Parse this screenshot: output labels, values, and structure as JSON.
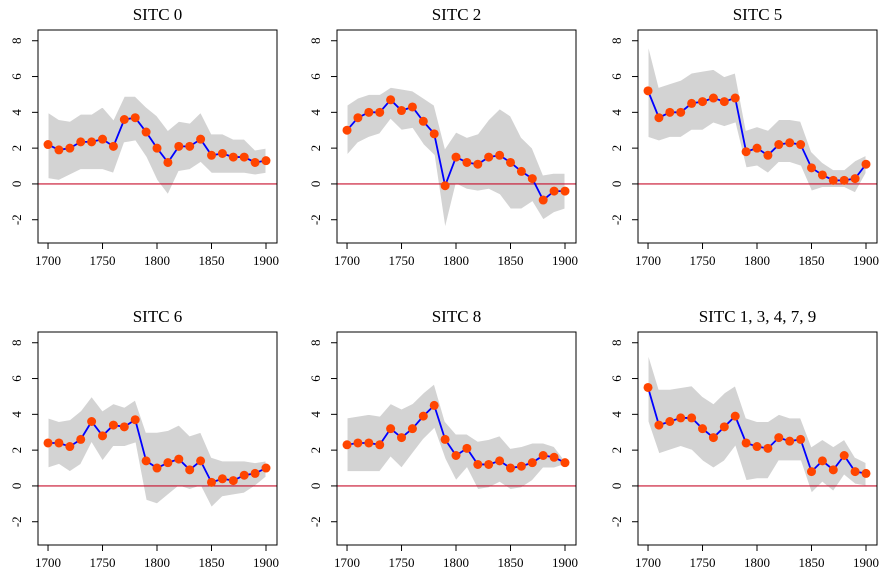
{
  "chart_data": [
    {
      "type": "line",
      "title": "SITC 0",
      "x": [
        1700,
        1710,
        1720,
        1730,
        1740,
        1750,
        1760,
        1770,
        1780,
        1790,
        1800,
        1810,
        1820,
        1830,
        1840,
        1850,
        1860,
        1870,
        1880,
        1890,
        1900
      ],
      "values": [
        2.2,
        1.9,
        2.0,
        2.35,
        2.35,
        2.5,
        2.1,
        3.6,
        3.7,
        2.9,
        2.0,
        1.2,
        2.1,
        2.1,
        2.5,
        1.6,
        1.7,
        1.5,
        1.5,
        1.2,
        1.3
      ],
      "upper": [
        4.0,
        3.6,
        3.5,
        3.9,
        3.9,
        4.3,
        3.6,
        4.9,
        4.9,
        4.3,
        3.8,
        3.0,
        3.5,
        3.4,
        4.0,
        2.8,
        2.8,
        2.5,
        2.5,
        1.9,
        2.0
      ],
      "lower": [
        0.3,
        0.2,
        0.5,
        0.8,
        0.8,
        0.8,
        0.6,
        2.3,
        2.4,
        1.5,
        0.2,
        -0.6,
        0.7,
        0.8,
        1.2,
        0.6,
        0.6,
        0.6,
        0.6,
        0.5,
        0.6
      ],
      "line_color": "#0000ff",
      "point_color": "#ff4500",
      "band_color": "#d3d3d3",
      "reference_line": 0,
      "reference_color": "#c8102e",
      "xlim": [
        1690.8,
        1910.1
      ],
      "xticks": [
        1700,
        1750,
        1800,
        1850,
        1900
      ],
      "ylim": [
        -3.3,
        8.6
      ],
      "yticks": [
        -2,
        0,
        2,
        4,
        6,
        8
      ]
    },
    {
      "type": "line",
      "title": "SITC 2",
      "x": [
        1700,
        1710,
        1720,
        1730,
        1740,
        1750,
        1760,
        1770,
        1780,
        1790,
        1800,
        1810,
        1820,
        1830,
        1840,
        1850,
        1860,
        1870,
        1880,
        1890,
        1900
      ],
      "values": [
        3.0,
        3.7,
        4.0,
        4.0,
        4.7,
        4.1,
        4.3,
        3.5,
        2.8,
        -0.1,
        1.5,
        1.2,
        1.1,
        1.5,
        1.6,
        1.2,
        0.7,
        0.3,
        -0.9,
        -0.4,
        -0.4
      ],
      "upper": [
        4.4,
        4.8,
        5.0,
        5.0,
        5.4,
        5.3,
        5.2,
        4.8,
        4.4,
        2.0,
        2.9,
        2.6,
        2.8,
        3.6,
        4.2,
        3.8,
        2.6,
        2.0,
        0.5,
        0.6,
        0.6
      ],
      "lower": [
        1.6,
        2.3,
        2.6,
        2.8,
        3.6,
        3.0,
        3.1,
        2.2,
        1.6,
        -2.5,
        0.0,
        -0.3,
        -0.4,
        -0.3,
        -0.6,
        -1.4,
        -1.4,
        -1.0,
        -2.0,
        -1.6,
        -1.4
      ],
      "line_color": "#0000ff",
      "point_color": "#ff4500",
      "band_color": "#d3d3d3",
      "reference_line": 0,
      "reference_color": "#c8102e",
      "xlim": [
        1690.8,
        1910.1
      ],
      "xticks": [
        1700,
        1750,
        1800,
        1850,
        1900
      ],
      "ylim": [
        -3.3,
        8.6
      ],
      "yticks": [
        -2,
        0,
        2,
        4,
        6,
        8
      ]
    },
    {
      "type": "line",
      "title": "SITC 5",
      "x": [
        1700,
        1710,
        1720,
        1730,
        1740,
        1750,
        1760,
        1770,
        1780,
        1790,
        1800,
        1810,
        1820,
        1830,
        1840,
        1850,
        1860,
        1870,
        1880,
        1890,
        1900
      ],
      "values": [
        5.2,
        3.7,
        4.0,
        4.0,
        4.5,
        4.6,
        4.8,
        4.6,
        4.8,
        1.8,
        2.0,
        1.6,
        2.2,
        2.3,
        2.2,
        0.9,
        0.5,
        0.2,
        0.2,
        0.3,
        1.1
      ],
      "upper": [
        7.8,
        5.4,
        5.6,
        5.8,
        6.2,
        6.3,
        6.4,
        6.0,
        6.2,
        3.0,
        3.2,
        3.0,
        3.6,
        3.6,
        3.5,
        1.8,
        1.2,
        0.8,
        0.8,
        1.3,
        1.6
      ],
      "lower": [
        2.6,
        2.4,
        2.6,
        2.6,
        3.0,
        3.0,
        3.4,
        3.2,
        3.4,
        0.9,
        1.0,
        0.6,
        1.2,
        1.2,
        1.0,
        -0.4,
        -0.2,
        -0.2,
        -0.2,
        -0.5,
        0.6
      ],
      "line_color": "#0000ff",
      "point_color": "#ff4500",
      "band_color": "#d3d3d3",
      "reference_line": 0,
      "reference_color": "#c8102e",
      "xlim": [
        1690.8,
        1910.1
      ],
      "xticks": [
        1700,
        1750,
        1800,
        1850,
        1900
      ],
      "ylim": [
        -3.3,
        8.6
      ],
      "yticks": [
        -2,
        0,
        2,
        4,
        6,
        8
      ]
    },
    {
      "type": "line",
      "title": "SITC 6",
      "x": [
        1700,
        1710,
        1720,
        1730,
        1740,
        1750,
        1760,
        1770,
        1780,
        1790,
        1800,
        1810,
        1820,
        1830,
        1840,
        1850,
        1860,
        1870,
        1880,
        1890,
        1900
      ],
      "values": [
        2.4,
        2.4,
        2.2,
        2.6,
        3.6,
        2.8,
        3.4,
        3.3,
        3.7,
        1.4,
        1.0,
        1.3,
        1.5,
        0.9,
        1.4,
        0.2,
        0.4,
        0.3,
        0.6,
        0.7,
        1.0
      ],
      "upper": [
        3.8,
        3.6,
        3.7,
        4.2,
        5.0,
        4.2,
        4.6,
        4.4,
        4.8,
        3.0,
        3.0,
        3.1,
        3.4,
        2.8,
        3.0,
        1.6,
        1.4,
        1.4,
        1.4,
        1.3,
        1.4
      ],
      "lower": [
        1.0,
        1.2,
        0.8,
        1.2,
        2.4,
        1.4,
        2.2,
        2.2,
        2.4,
        -0.8,
        -1.0,
        -0.5,
        0.0,
        -0.2,
        0.0,
        -1.2,
        -0.6,
        -0.5,
        -0.4,
        0.0,
        0.5
      ],
      "line_color": "#0000ff",
      "point_color": "#ff4500",
      "band_color": "#d3d3d3",
      "reference_line": 0,
      "reference_color": "#c8102e",
      "xlim": [
        1690.8,
        1910.1
      ],
      "xticks": [
        1700,
        1750,
        1800,
        1850,
        1900
      ],
      "ylim": [
        -3.3,
        8.6
      ],
      "yticks": [
        -2,
        0,
        2,
        4,
        6,
        8
      ]
    },
    {
      "type": "line",
      "title": "SITC 8",
      "x": [
        1700,
        1710,
        1720,
        1730,
        1740,
        1750,
        1760,
        1770,
        1780,
        1790,
        1800,
        1810,
        1820,
        1830,
        1840,
        1850,
        1860,
        1870,
        1880,
        1890,
        1900
      ],
      "values": [
        2.3,
        2.4,
        2.4,
        2.3,
        3.2,
        2.7,
        3.2,
        3.9,
        4.5,
        2.6,
        1.7,
        2.1,
        1.2,
        1.2,
        1.4,
        1.0,
        1.1,
        1.3,
        1.7,
        1.6,
        1.3
      ],
      "upper": [
        3.8,
        3.9,
        4.0,
        3.9,
        4.6,
        4.3,
        4.6,
        5.2,
        5.7,
        3.6,
        2.9,
        2.9,
        2.5,
        2.6,
        2.8,
        2.1,
        2.2,
        2.4,
        2.4,
        2.2,
        1.4
      ],
      "lower": [
        0.8,
        0.8,
        0.8,
        0.8,
        1.6,
        1.0,
        1.8,
        2.6,
        3.2,
        1.5,
        0.3,
        1.0,
        -0.2,
        -0.1,
        0.2,
        -0.2,
        -0.1,
        0.3,
        1.0,
        1.0,
        1.2
      ],
      "line_color": "#0000ff",
      "point_color": "#ff4500",
      "band_color": "#d3d3d3",
      "reference_line": 0,
      "reference_color": "#c8102e",
      "xlim": [
        1690.8,
        1910.1
      ],
      "xticks": [
        1700,
        1750,
        1800,
        1850,
        1900
      ],
      "ylim": [
        -3.3,
        8.6
      ],
      "yticks": [
        -2,
        0,
        2,
        4,
        6,
        8
      ]
    },
    {
      "type": "line",
      "title": "SITC 1, 3, 4, 7, 9",
      "x": [
        1700,
        1710,
        1720,
        1730,
        1740,
        1750,
        1760,
        1770,
        1780,
        1790,
        1800,
        1810,
        1820,
        1830,
        1840,
        1850,
        1860,
        1870,
        1880,
        1890,
        1900
      ],
      "values": [
        5.5,
        3.4,
        3.6,
        3.8,
        3.8,
        3.2,
        2.7,
        3.3,
        3.9,
        2.4,
        2.2,
        2.1,
        2.7,
        2.5,
        2.6,
        0.8,
        1.4,
        0.9,
        1.7,
        0.8,
        0.7
      ],
      "upper": [
        7.4,
        5.4,
        5.4,
        5.5,
        5.6,
        5.0,
        4.6,
        5.2,
        5.6,
        3.8,
        3.6,
        3.6,
        4.0,
        3.8,
        3.8,
        2.2,
        2.6,
        2.2,
        2.6,
        1.6,
        1.3
      ],
      "lower": [
        3.6,
        1.8,
        2.0,
        2.2,
        2.0,
        1.4,
        1.0,
        1.4,
        2.2,
        0.3,
        0.4,
        0.4,
        1.4,
        1.4,
        1.4,
        -0.4,
        0.2,
        -0.3,
        0.6,
        0.1,
        0.0
      ],
      "line_color": "#0000ff",
      "point_color": "#ff4500",
      "band_color": "#d3d3d3",
      "reference_line": 0,
      "reference_color": "#c8102e",
      "xlim": [
        1690.8,
        1910.1
      ],
      "xticks": [
        1700,
        1750,
        1800,
        1850,
        1900
      ],
      "ylim": [
        -3.3,
        8.6
      ],
      "yticks": [
        -2,
        0,
        2,
        4,
        6,
        8
      ]
    }
  ]
}
